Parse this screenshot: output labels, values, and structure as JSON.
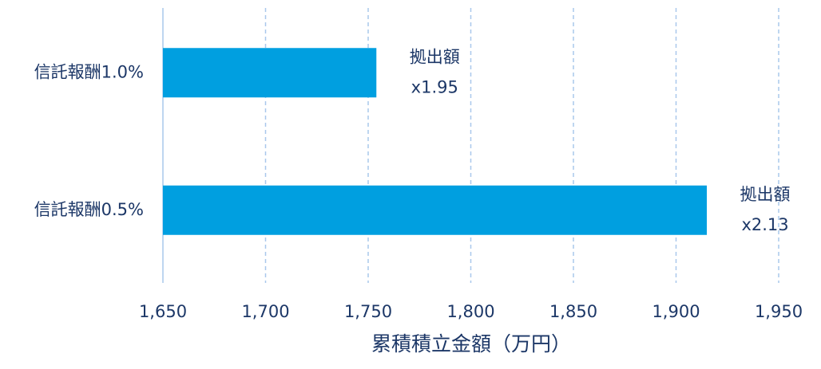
{
  "chart_data": {
    "type": "hbar",
    "categories": [
      "信託報酬1.0%",
      "信託報酬0.5%"
    ],
    "values": [
      1754,
      1915
    ],
    "annotations": [
      [
        "拠出額",
        "x1.95"
      ],
      [
        "拠出額",
        "x2.13"
      ]
    ],
    "color": "#009fe0",
    "xlabel": "累積積立金額（万円）",
    "xlim": [
      1650,
      1950
    ],
    "xticks": [
      {
        "value": 1650,
        "label": "1,650"
      },
      {
        "value": 1700,
        "label": "1,700"
      },
      {
        "value": 1750,
        "label": "1,750"
      },
      {
        "value": 1800,
        "label": "1,800"
      },
      {
        "value": 1850,
        "label": "1,850"
      },
      {
        "value": 1900,
        "label": "1,900"
      },
      {
        "value": 1950,
        "label": "1,950"
      }
    ],
    "grid": true
  }
}
